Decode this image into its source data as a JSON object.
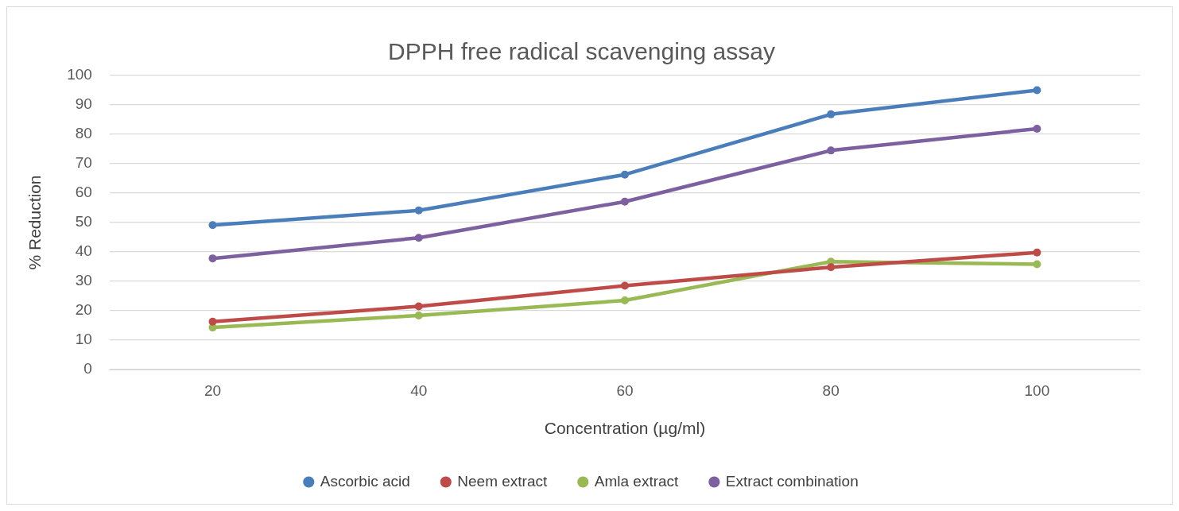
{
  "chart_data": {
    "type": "line",
    "title": "DPPH free radical scavenging assay",
    "xlabel": "Concentration (µg/ml)",
    "ylabel": "% Reduction",
    "categories": [
      "20",
      "40",
      "60",
      "80",
      "100"
    ],
    "series": [
      {
        "name": "Ascorbic acid",
        "color": "#4a7ebb",
        "values": [
          49.1,
          54.1,
          66.3,
          86.8,
          95
        ]
      },
      {
        "name": "Neem extract",
        "color": "#be4b48",
        "values": [
          16.3,
          21.5,
          28.5,
          34.8,
          39.8
        ]
      },
      {
        "name": "Amla extract",
        "color": "#98b954",
        "values": [
          14.3,
          18.4,
          23.5,
          36.7,
          35.8
        ]
      },
      {
        "name": "Extract combination",
        "color": "#7d60a0",
        "values": [
          37.8,
          44.8,
          57.1,
          74.5,
          81.9
        ]
      }
    ],
    "ylim": [
      0,
      100
    ],
    "yticks": [
      0,
      10,
      20,
      30,
      40,
      50,
      60,
      70,
      80,
      90,
      100
    ],
    "grid": "y",
    "legend": "bottom",
    "marker": "circle",
    "line_style": "solid"
  }
}
